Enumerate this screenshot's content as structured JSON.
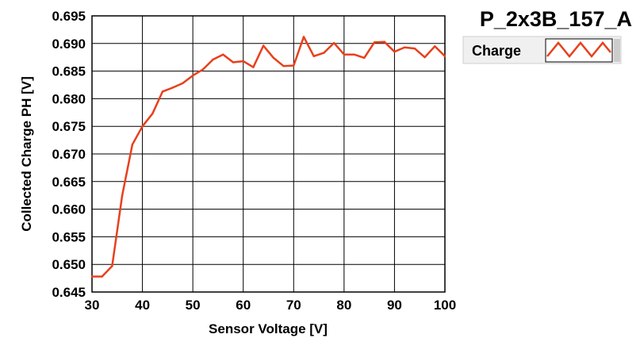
{
  "chart_data": {
    "type": "line",
    "title": "P_2x3B_157_A",
    "xlabel": "Sensor Voltage [V]",
    "ylabel": "Collected Charge PH [V]",
    "xlim": [
      30,
      100
    ],
    "ylim": [
      0.645,
      0.695
    ],
    "x_ticks": [
      "30",
      "40",
      "50",
      "60",
      "70",
      "80",
      "90",
      "100"
    ],
    "y_ticks": [
      "0.645",
      "0.650",
      "0.655",
      "0.660",
      "0.665",
      "0.670",
      "0.675",
      "0.680",
      "0.685",
      "0.690",
      "0.695"
    ],
    "grid": true,
    "legend_position": "top-right",
    "series": [
      {
        "name": "Charge",
        "color": "#e8401c",
        "x": [
          30,
          32,
          34,
          36,
          38,
          40,
          42,
          44,
          46,
          48,
          50,
          52,
          54,
          56,
          58,
          60,
          62,
          64,
          66,
          68,
          70,
          72,
          74,
          76,
          78,
          80,
          82,
          84,
          86,
          88,
          90,
          92,
          94,
          96,
          98,
          100
        ],
        "y": [
          0.6478,
          0.6478,
          0.6497,
          0.6625,
          0.6717,
          0.675,
          0.6773,
          0.6813,
          0.682,
          0.6828,
          0.6842,
          0.6853,
          0.6871,
          0.688,
          0.6866,
          0.6868,
          0.6857,
          0.6896,
          0.6874,
          0.6859,
          0.686,
          0.6912,
          0.6877,
          0.6883,
          0.6901,
          0.688,
          0.688,
          0.6874,
          0.6902,
          0.6903,
          0.6885,
          0.6893,
          0.6891,
          0.6875,
          0.6895,
          0.6877
        ]
      }
    ]
  }
}
